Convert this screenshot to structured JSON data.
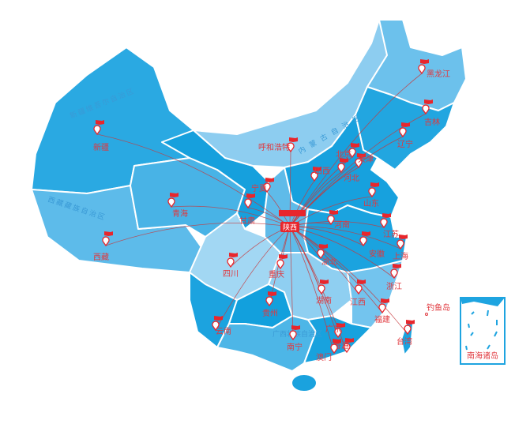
{
  "colors": {
    "dark": "#12a4e0",
    "mid": "#3db1e6",
    "light": "#73c3ec",
    "pale": "#a4d8f3",
    "border": "#ffffff",
    "route": "#c6383c",
    "marker": "#e8262c"
  },
  "regions": {
    "xinjiang": "新疆维吾尔自治区",
    "xizang": "西藏藏族自治区",
    "neimenggu": "内 蒙 古 自 治 区",
    "guangxi": "广西壮族自治区"
  },
  "hub": {
    "label": "陕西",
    "logo_icon": "company-logo-icon"
  },
  "provinces": [
    {
      "name": "新疆"
    },
    {
      "name": "青海"
    },
    {
      "name": "西藏"
    },
    {
      "name": "甘肃"
    },
    {
      "name": "宁夏"
    },
    {
      "name": "呼和浩特"
    },
    {
      "name": "北京"
    },
    {
      "name": "天津"
    },
    {
      "name": "山西"
    },
    {
      "name": "河北"
    },
    {
      "name": "山东"
    },
    {
      "name": "河南"
    },
    {
      "name": "江苏"
    },
    {
      "name": "安徽"
    },
    {
      "name": "上海"
    },
    {
      "name": "湖北"
    },
    {
      "name": "辽宁"
    },
    {
      "name": "吉林"
    },
    {
      "name": "黑龙江"
    },
    {
      "name": "四川"
    },
    {
      "name": "重庆"
    },
    {
      "name": "湖南"
    },
    {
      "name": "江西"
    },
    {
      "name": "浙江"
    },
    {
      "name": "福建"
    },
    {
      "name": "贵州"
    },
    {
      "name": "云南"
    },
    {
      "name": "南宁"
    },
    {
      "name": "广东"
    },
    {
      "name": "香港"
    },
    {
      "name": "澳门"
    },
    {
      "name": "台湾"
    }
  ],
  "diaoyudao": "钓鱼岛",
  "south_sea_inset": "南海诸岛"
}
